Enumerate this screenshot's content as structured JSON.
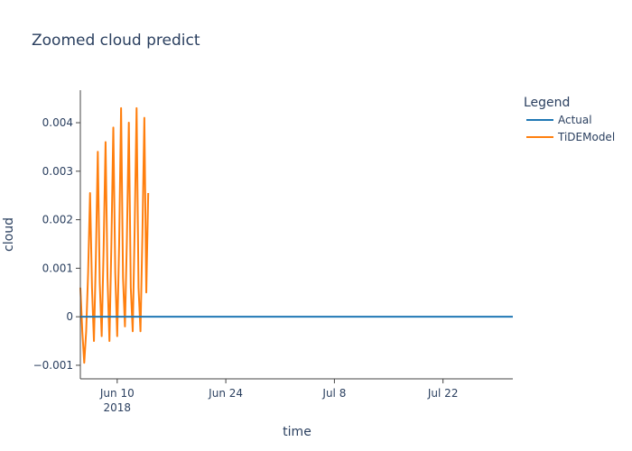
{
  "chart_data": {
    "type": "line",
    "title": "Zoomed cloud predict",
    "xlabel": "time",
    "ylabel": "cloud",
    "x_range": [
      "2018-06-05T06:00",
      "2018-07-31T00:00"
    ],
    "ylim": [
      -0.00128,
      0.00467
    ],
    "x_ticks": [
      {
        "value": "2018-06-10",
        "label": "Jun 10",
        "sublabel": "2018"
      },
      {
        "value": "2018-06-24",
        "label": "Jun 24",
        "sublabel": ""
      },
      {
        "value": "2018-07-08",
        "label": "Jul 8",
        "sublabel": ""
      },
      {
        "value": "2018-07-22",
        "label": "Jul 22",
        "sublabel": ""
      }
    ],
    "y_ticks": [
      {
        "value": -0.001,
        "label": "−0.001"
      },
      {
        "value": 0,
        "label": "0"
      },
      {
        "value": 0.001,
        "label": "0.001"
      },
      {
        "value": 0.002,
        "label": "0.002"
      },
      {
        "value": 0.003,
        "label": "0.003"
      },
      {
        "value": 0.004,
        "label": "0.004"
      }
    ],
    "grid": false,
    "legend": {
      "title": "Legend",
      "placement": "top-right"
    },
    "series": [
      {
        "name": "Actual",
        "color": "#1f77b4",
        "x": [
          "2018-06-05T06:00",
          "2018-07-31T00:00"
        ],
        "y": [
          0,
          0
        ]
      },
      {
        "name": "TiDEModel",
        "color": "#ff7f0e",
        "x": [
          "2018-06-05T06:00",
          "2018-06-05T12:00",
          "2018-06-05T18:00",
          "2018-06-06T00:00",
          "2018-06-06T06:00",
          "2018-06-06T12:00",
          "2018-06-06T18:00",
          "2018-06-07T00:00",
          "2018-06-07T06:00",
          "2018-06-07T12:00",
          "2018-06-07T18:00",
          "2018-06-08T00:00",
          "2018-06-08T06:00",
          "2018-06-08T12:00",
          "2018-06-08T18:00",
          "2018-06-09T00:00",
          "2018-06-09T06:00",
          "2018-06-09T12:00",
          "2018-06-09T18:00",
          "2018-06-10T00:00",
          "2018-06-10T06:00",
          "2018-06-10T12:00",
          "2018-06-10T18:00",
          "2018-06-11T00:00",
          "2018-06-11T06:00",
          "2018-06-11T12:00",
          "2018-06-11T18:00",
          "2018-06-12T00:00",
          "2018-06-12T06:00",
          "2018-06-12T12:00",
          "2018-06-12T18:00",
          "2018-06-13T00:00",
          "2018-06-13T06:00",
          "2018-06-13T12:00",
          "2018-06-13T18:00",
          "2018-06-14T00:00"
        ],
        "y": [
          0.0006,
          -0.0003,
          -0.00095,
          -0.0003,
          0.0009,
          0.00255,
          0.0006,
          -0.0005,
          0.0012,
          0.0034,
          0.0007,
          -0.0004,
          0.0014,
          0.0036,
          0.0008,
          -0.0005,
          0.0015,
          0.0039,
          0.0009,
          -0.0004,
          0.0015,
          0.0043,
          0.0008,
          -0.0002,
          0.0016,
          0.004,
          0.0006,
          -0.0003,
          0.0018,
          0.0043,
          0.0006,
          -0.0003,
          0.0017,
          0.0041,
          0.0005,
          0.00255
        ]
      }
    ]
  }
}
